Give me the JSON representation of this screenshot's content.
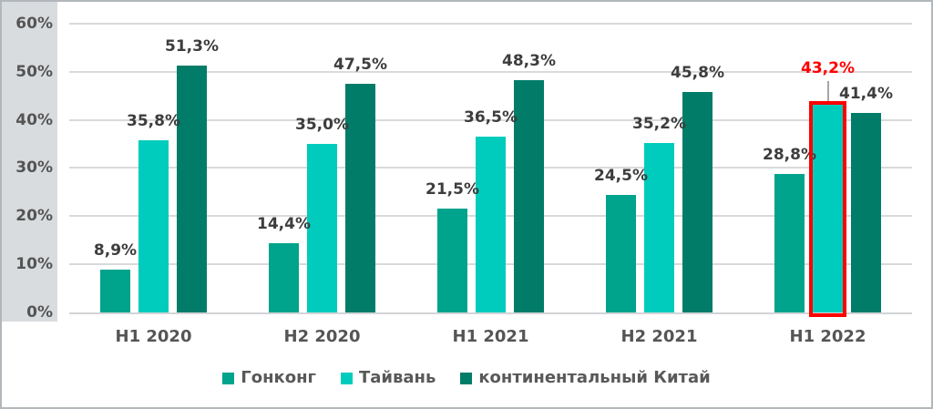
{
  "chart_data": {
    "type": "bar",
    "title": "",
    "categories": [
      "H1 2020",
      "H2 2020",
      "H1 2021",
      "H2 2021",
      "H1 2022"
    ],
    "series": [
      {
        "name": "Гонконг",
        "color": "#00a38c",
        "values": [
          8.9,
          14.4,
          21.5,
          24.5,
          28.8
        ],
        "labels": [
          "8,9%",
          "14,4%",
          "21,5%",
          "24,5%",
          "28,8%"
        ]
      },
      {
        "name": "Тайвань",
        "color": "#00ccbd",
        "values": [
          35.8,
          35.0,
          36.5,
          35.2,
          43.2
        ],
        "labels": [
          "35,8%",
          "35,0%",
          "36,5%",
          "35,2%",
          "43,2%"
        ]
      },
      {
        "name": "континентальный Китай",
        "color": "#007c69",
        "values": [
          51.3,
          47.5,
          48.3,
          45.8,
          41.4
        ],
        "labels": [
          "51,3%",
          "47,5%",
          "48,3%",
          "45,8%",
          "41,4%"
        ]
      }
    ],
    "ylim": [
      0,
      60
    ],
    "ytick_values": [
      0,
      10,
      20,
      30,
      40,
      50,
      60
    ],
    "ytick_labels": [
      "0%",
      "10%",
      "20%",
      "30%",
      "40%",
      "50%",
      "60%"
    ],
    "grid": true,
    "legend_position": "bottom",
    "highlight": {
      "series": "Тайвань",
      "series_index": 1,
      "category": "H1 2022",
      "category_index": 4,
      "label": "43,2%",
      "box_color": "#ff0000",
      "label_color": "#ff0000"
    }
  },
  "colors": {
    "left_panel_background": "#d9dcde",
    "plot_background": "#ffffff",
    "gridline": "#dadada",
    "baseline": "#d2d5d7",
    "ytick_text": "#545454",
    "xtick_text": "#555555",
    "data_label_text": "#3d3d3d",
    "legend_text": "#595959",
    "leader_line": "#a6a6a6",
    "highlight_red": "#ff0000",
    "canvas_border": "#b2b7bb"
  }
}
